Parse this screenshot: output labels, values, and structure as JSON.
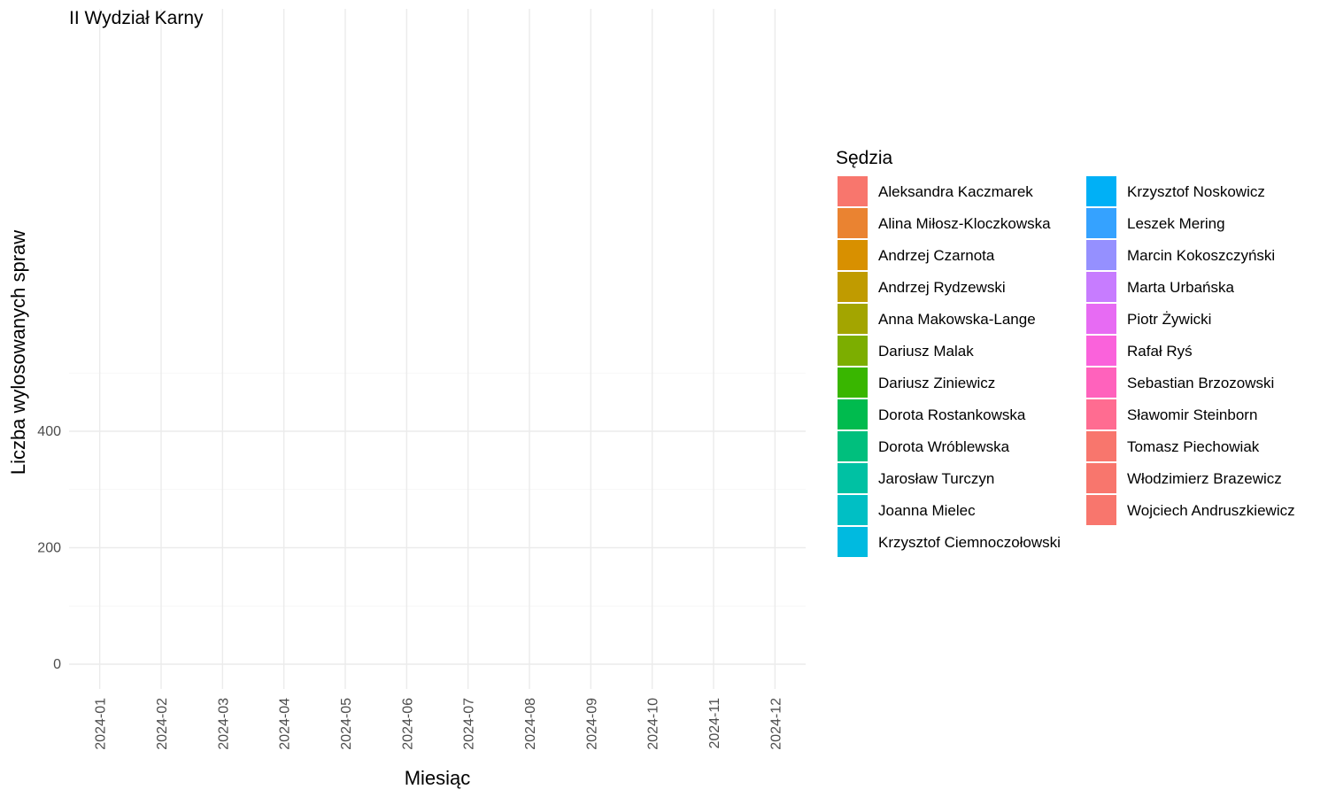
{
  "chart_data": {
    "type": "bar",
    "stacked": true,
    "title": "II Wydział Karny",
    "xlabel": "Miesiąc",
    "ylabel": "Liczba wylosowanych spraw",
    "ylim": [
      0,
      540
    ],
    "yticks": [
      0,
      200,
      400
    ],
    "legend_title": "Sędzia",
    "legend_position": "right",
    "grid": true,
    "categories": [
      "2024-01",
      "2024-02",
      "2024-03",
      "2024-04",
      "2024-05",
      "2024-06",
      "2024-07",
      "2024-08",
      "2024-09",
      "2024-10",
      "2024-11",
      "2024-12"
    ],
    "series": [
      {
        "name": "Aleksandra Kaczmarek",
        "color": "#F8766D",
        "values": [
          0,
          0,
          0,
          0,
          0,
          0,
          0,
          0,
          0,
          0,
          0,
          0
        ]
      },
      {
        "name": "Alina Miłosz-Kloczkowska",
        "color": "#EA8331",
        "values": [
          0,
          0,
          0,
          0,
          0,
          0,
          0,
          0,
          0,
          0,
          0,
          0
        ]
      },
      {
        "name": "Andrzej Czarnota",
        "color": "#D89000",
        "values": [
          0,
          0,
          0,
          0,
          0,
          0,
          0,
          0,
          0,
          0,
          0,
          0
        ]
      },
      {
        "name": "Andrzej Rydzewski",
        "color": "#C09B00",
        "values": [
          0,
          0,
          0,
          0,
          0,
          0,
          0,
          0,
          0,
          0,
          0,
          0
        ]
      },
      {
        "name": "Anna Makowska-Lange",
        "color": "#A3A500",
        "values": [
          0,
          0,
          0,
          0,
          0,
          0,
          0,
          0,
          0,
          0,
          0,
          0
        ]
      },
      {
        "name": "Dariusz Malak",
        "color": "#7CAE00",
        "values": [
          0,
          0,
          0,
          0,
          0,
          0,
          0,
          0,
          0,
          0,
          0,
          0
        ]
      },
      {
        "name": "Dariusz Ziniewicz",
        "color": "#39B600",
        "values": [
          0,
          0,
          0,
          0,
          0,
          0,
          0,
          0,
          0,
          0,
          0,
          0
        ]
      },
      {
        "name": "Dorota Rostankowska",
        "color": "#00BB4E",
        "values": [
          0,
          0,
          0,
          0,
          0,
          0,
          0,
          0,
          0,
          0,
          0,
          0
        ]
      },
      {
        "name": "Dorota Wróblewska",
        "color": "#00BF7D",
        "values": [
          0,
          0,
          0,
          0,
          0,
          0,
          0,
          0,
          0,
          0,
          0,
          0
        ]
      },
      {
        "name": "Jarosław Turczyn",
        "color": "#00C1A3",
        "values": [
          0,
          0,
          0,
          0,
          0,
          0,
          0,
          0,
          0,
          0,
          0,
          0
        ]
      },
      {
        "name": "Joanna Mielec",
        "color": "#00BFC4",
        "values": [
          0,
          0,
          0,
          0,
          0,
          0,
          0,
          0,
          0,
          0,
          0,
          0
        ]
      },
      {
        "name": "Krzysztof Ciemnoczołowski",
        "color": "#00BAE0",
        "values": [
          0,
          0,
          0,
          0,
          0,
          0,
          0,
          0,
          0,
          0,
          0,
          0
        ]
      },
      {
        "name": "Krzysztof Noskowicz",
        "color": "#00B0F6",
        "values": [
          0,
          0,
          0,
          0,
          0,
          0,
          0,
          0,
          0,
          0,
          0,
          0
        ]
      },
      {
        "name": "Leszek Mering",
        "color": "#35A2FF",
        "values": [
          0,
          0,
          0,
          0,
          0,
          0,
          0,
          0,
          0,
          0,
          0,
          0
        ]
      },
      {
        "name": "Marcin Kokoszczyński",
        "color": "#9590FF",
        "values": [
          0,
          0,
          0,
          0,
          0,
          0,
          0,
          0,
          0,
          0,
          0,
          0
        ]
      },
      {
        "name": "Marta Urbańska",
        "color": "#C77CFF",
        "values": [
          0,
          0,
          0,
          0,
          0,
          0,
          0,
          0,
          0,
          0,
          0,
          0
        ]
      },
      {
        "name": "Piotr Żywicki",
        "color": "#E76BF3",
        "values": [
          0,
          0,
          0,
          0,
          0,
          0,
          0,
          0,
          0,
          0,
          0,
          0
        ]
      },
      {
        "name": "Rafał Ryś",
        "color": "#FA62DB",
        "values": [
          0,
          0,
          0,
          0,
          0,
          0,
          0,
          0,
          0,
          0,
          0,
          0
        ]
      },
      {
        "name": "Sebastian Brzozowski",
        "color": "#FF62BC",
        "values": [
          0,
          0,
          0,
          0,
          0,
          0,
          0,
          0,
          0,
          0,
          0,
          0
        ]
      },
      {
        "name": "Sławomir Steinborn",
        "color": "#FF6C91",
        "values": [
          0,
          0,
          0,
          0,
          0,
          0,
          0,
          0,
          0,
          0,
          0,
          0
        ]
      },
      {
        "name": "Tomasz Piechowiak",
        "color": "#F8766D",
        "values": [
          0,
          0,
          0,
          0,
          0,
          0,
          0,
          0,
          0,
          0,
          0,
          0
        ]
      },
      {
        "name": "Włodzimierz Brazewicz",
        "color": "#F8766D",
        "values": [
          0,
          0,
          0,
          0,
          0,
          0,
          0,
          0,
          0,
          0,
          0,
          0
        ]
      },
      {
        "name": "Wojciech Andruszkiewicz",
        "color": "#F8766D",
        "values": [
          0,
          0,
          0,
          0,
          0,
          0,
          0,
          0,
          0,
          0,
          0,
          0
        ]
      }
    ]
  }
}
